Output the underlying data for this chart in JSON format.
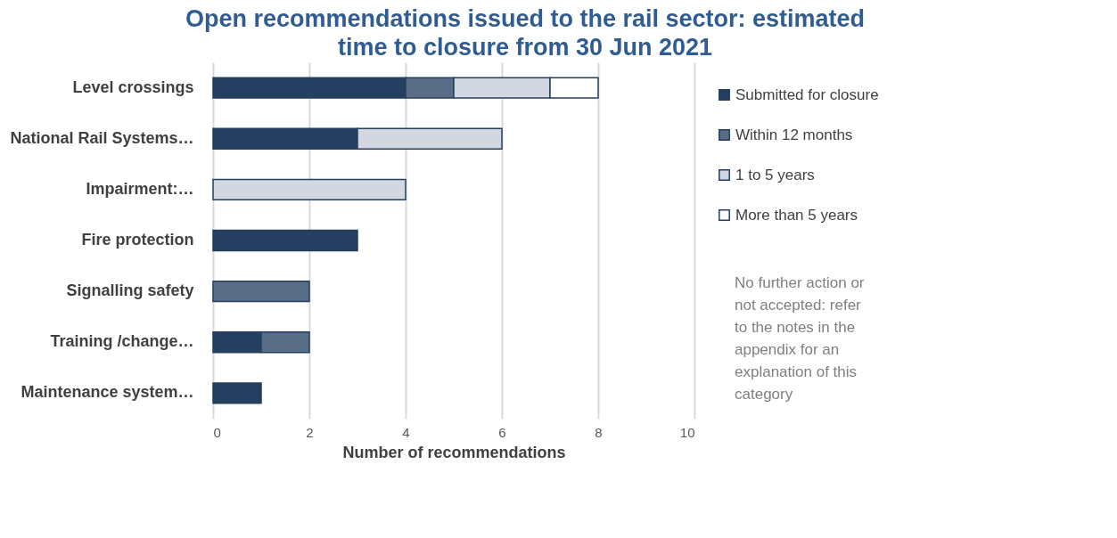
{
  "chart_data": {
    "type": "bar",
    "orientation": "horizontal",
    "stacked": true,
    "title": "Open recommendations issued to the rail sector: estimated time to closure from 30 Jun 2021",
    "xlabel": "Number of recommendations",
    "categories": [
      "Level crossings",
      "National Rail Systems…",
      "Impairment:…",
      "Fire protection",
      "Signalling safety",
      "Training /change…",
      "Maintenance system…"
    ],
    "series": [
      {
        "name": "Submitted for closure",
        "color": "#243f60",
        "values": [
          4,
          3,
          0,
          3,
          0,
          1,
          1
        ]
      },
      {
        "name": "Within 12 months",
        "color": "#5a6d86",
        "values": [
          1,
          0,
          0,
          0,
          2,
          1,
          0
        ]
      },
      {
        "name": "1 to 5 years",
        "color": "#d3d8e0",
        "values": [
          2,
          3,
          4,
          0,
          0,
          0,
          0
        ]
      },
      {
        "name": "More than  5 years",
        "color": "#ffffff",
        "values": [
          1,
          0,
          0,
          0,
          0,
          0,
          0
        ]
      }
    ],
    "xlim": [
      0,
      10
    ],
    "xticks": [
      0,
      2,
      4,
      6,
      8,
      10
    ],
    "grid": "x",
    "legend": "right",
    "annotations": [
      "No further action or not accepted: refer to the notes in the appendix  for an explanation of this category"
    ]
  }
}
